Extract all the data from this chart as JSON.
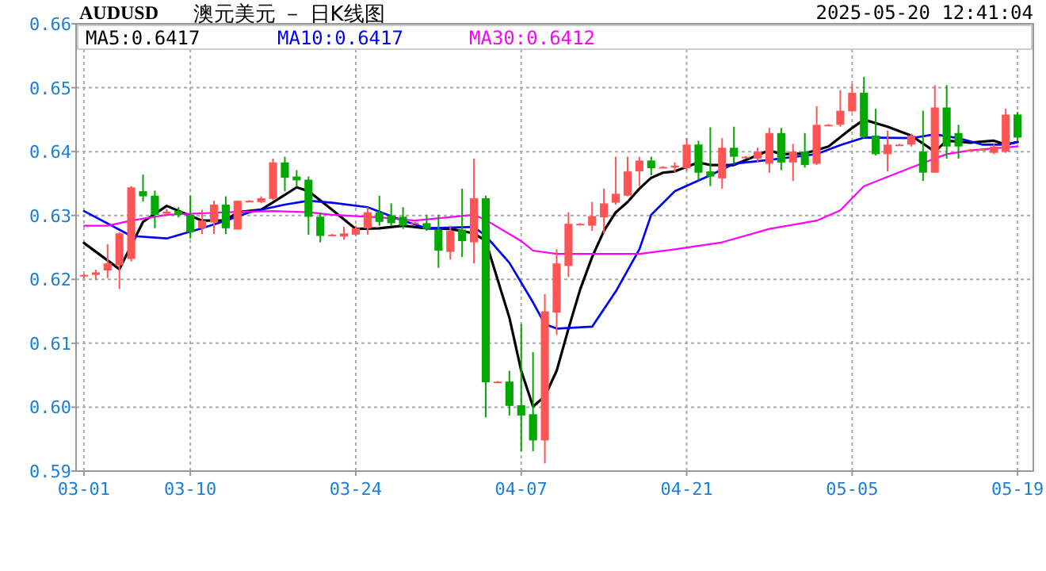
{
  "chart_data": {
    "type": "candlestick",
    "title": "澳元美元 － 日K线图",
    "subtitle": "AUDUSD",
    "annotations": [
      "2025-05-20 12:41:04"
    ],
    "x": [
      "2025-03-01",
      "2025-03-02",
      "2025-03-03",
      "2025-03-04",
      "2025-03-05",
      "2025-03-06",
      "2025-03-07",
      "2025-03-08",
      "2025-03-09",
      "2025-03-10",
      "2025-03-11",
      "2025-03-12",
      "2025-03-13",
      "2025-03-14",
      "2025-03-15",
      "2025-03-16",
      "2025-03-17",
      "2025-03-18",
      "2025-03-19",
      "2025-03-20",
      "2025-03-21",
      "2025-03-22",
      "2025-03-23",
      "2025-03-24",
      "2025-03-25",
      "2025-03-26",
      "2025-03-27",
      "2025-03-28",
      "2025-03-29",
      "2025-03-30",
      "2025-03-31",
      "2025-04-01",
      "2025-04-02",
      "2025-04-03",
      "2025-04-04",
      "2025-04-05",
      "2025-04-06",
      "2025-04-07",
      "2025-04-08",
      "2025-04-09",
      "2025-04-10",
      "2025-04-11",
      "2025-04-12",
      "2025-04-13",
      "2025-04-14",
      "2025-04-15",
      "2025-04-16",
      "2025-04-17",
      "2025-04-18",
      "2025-04-19",
      "2025-04-20",
      "2025-04-21",
      "2025-04-22",
      "2025-04-23",
      "2025-04-24",
      "2025-04-25",
      "2025-04-26",
      "2025-04-27",
      "2025-04-28",
      "2025-04-29",
      "2025-04-30",
      "2025-05-01",
      "2025-05-02",
      "2025-05-03",
      "2025-05-04",
      "2025-05-05",
      "2025-05-06",
      "2025-05-07",
      "2025-05-08",
      "2025-05-09",
      "2025-05-10",
      "2025-05-11",
      "2025-05-12",
      "2025-05-13",
      "2025-05-14",
      "2025-05-15",
      "2025-05-16",
      "2025-05-17",
      "2025-05-18",
      "2025-05-19"
    ],
    "ohlc": [
      [
        0.6205,
        0.6208,
        0.6203,
        0.6207
      ],
      [
        0.6207,
        0.6215,
        0.6199,
        0.6211
      ],
      [
        0.6214,
        0.6255,
        0.6202,
        0.6225
      ],
      [
        0.6222,
        0.6274,
        0.6185,
        0.6272
      ],
      [
        0.6232,
        0.6346,
        0.6228,
        0.6344
      ],
      [
        0.6338,
        0.6364,
        0.6322,
        0.633
      ],
      [
        0.6331,
        0.6339,
        0.628,
        0.6301
      ],
      [
        0.6303,
        0.631,
        0.63,
        0.6306
      ],
      [
        0.6307,
        0.6313,
        0.6297,
        0.6301
      ],
      [
        0.6301,
        0.6331,
        0.6264,
        0.6274
      ],
      [
        0.628,
        0.6309,
        0.6271,
        0.6292
      ],
      [
        0.6289,
        0.6323,
        0.6271,
        0.6317
      ],
      [
        0.6317,
        0.633,
        0.6271,
        0.628
      ],
      [
        0.6278,
        0.6323,
        0.6278,
        0.6323
      ],
      [
        0.6322,
        0.6324,
        0.6321,
        0.6323
      ],
      [
        0.6321,
        0.633,
        0.6319,
        0.6327
      ],
      [
        0.6326,
        0.6389,
        0.6324,
        0.6383
      ],
      [
        0.6383,
        0.6392,
        0.6338,
        0.6359
      ],
      [
        0.6361,
        0.6371,
        0.6345,
        0.6355
      ],
      [
        0.6356,
        0.6361,
        0.627,
        0.6298
      ],
      [
        0.6298,
        0.6305,
        0.6258,
        0.6268
      ],
      [
        0.6269,
        0.6271,
        0.6268,
        0.627
      ],
      [
        0.6267,
        0.6282,
        0.6262,
        0.6272
      ],
      [
        0.627,
        0.6284,
        0.6268,
        0.628
      ],
      [
        0.628,
        0.6313,
        0.627,
        0.6305
      ],
      [
        0.6305,
        0.6331,
        0.6284,
        0.629
      ],
      [
        0.63,
        0.6319,
        0.6284,
        0.6288
      ],
      [
        0.6298,
        0.6313,
        0.6279,
        0.6284
      ],
      [
        0.6288,
        0.629,
        0.6287,
        0.6289
      ],
      [
        0.6288,
        0.6301,
        0.6276,
        0.6279
      ],
      [
        0.6278,
        0.6301,
        0.6218,
        0.6245
      ],
      [
        0.6243,
        0.6284,
        0.6231,
        0.6276
      ],
      [
        0.6278,
        0.6342,
        0.6235,
        0.626
      ],
      [
        0.6258,
        0.6389,
        0.6225,
        0.6327
      ],
      [
        0.6327,
        0.6331,
        0.5984,
        0.6039
      ],
      [
        0.6039,
        0.6041,
        0.6038,
        0.604
      ],
      [
        0.604,
        0.6057,
        0.5987,
        0.6002
      ],
      [
        0.6003,
        0.613,
        0.5931,
        0.5987
      ],
      [
        0.5989,
        0.6086,
        0.5931,
        0.5948
      ],
      [
        0.5948,
        0.6177,
        0.5912,
        0.615
      ],
      [
        0.6148,
        0.6247,
        0.6113,
        0.6225
      ],
      [
        0.6221,
        0.6305,
        0.6204,
        0.6287
      ],
      [
        0.6286,
        0.6288,
        0.6285,
        0.6287
      ],
      [
        0.6284,
        0.6321,
        0.6276,
        0.6299
      ],
      [
        0.6297,
        0.6342,
        0.6272,
        0.6319
      ],
      [
        0.632,
        0.6392,
        0.6317,
        0.6334
      ],
      [
        0.6331,
        0.6392,
        0.633,
        0.6369
      ],
      [
        0.6369,
        0.6392,
        0.6346,
        0.6386
      ],
      [
        0.6386,
        0.6392,
        0.6363,
        0.6374
      ],
      [
        0.6375,
        0.6377,
        0.6374,
        0.6376
      ],
      [
        0.6375,
        0.6383,
        0.6367,
        0.6378
      ],
      [
        0.6374,
        0.6421,
        0.637,
        0.6411
      ],
      [
        0.6411,
        0.6417,
        0.6355,
        0.6367
      ],
      [
        0.6369,
        0.6438,
        0.6346,
        0.6361
      ],
      [
        0.6358,
        0.6421,
        0.6342,
        0.6406
      ],
      [
        0.6406,
        0.6439,
        0.638,
        0.6392
      ],
      [
        0.6391,
        0.6393,
        0.639,
        0.6392
      ],
      [
        0.6389,
        0.6406,
        0.6383,
        0.64
      ],
      [
        0.6381,
        0.6437,
        0.6367,
        0.6429
      ],
      [
        0.6429,
        0.6437,
        0.6371,
        0.6383
      ],
      [
        0.6383,
        0.6412,
        0.6354,
        0.64
      ],
      [
        0.64,
        0.6429,
        0.6375,
        0.6379
      ],
      [
        0.6381,
        0.6471,
        0.6379,
        0.6442
      ],
      [
        0.6441,
        0.6443,
        0.644,
        0.6442
      ],
      [
        0.6442,
        0.6496,
        0.6439,
        0.6464
      ],
      [
        0.6463,
        0.6506,
        0.6462,
        0.6492
      ],
      [
        0.6492,
        0.6517,
        0.6421,
        0.6423
      ],
      [
        0.6425,
        0.6467,
        0.6394,
        0.6396
      ],
      [
        0.6396,
        0.6433,
        0.6369,
        0.6411
      ],
      [
        0.641,
        0.6412,
        0.6409,
        0.6411
      ],
      [
        0.6411,
        0.6428,
        0.6408,
        0.6425
      ],
      [
        0.64,
        0.6464,
        0.6354,
        0.6367
      ],
      [
        0.6367,
        0.6504,
        0.6367,
        0.6469
      ],
      [
        0.6469,
        0.6504,
        0.6389,
        0.6408
      ],
      [
        0.6429,
        0.6442,
        0.6389,
        0.6408
      ],
      [
        0.6402,
        0.6404,
        0.6401,
        0.6403
      ],
      [
        0.6403,
        0.6405,
        0.6402,
        0.6404
      ],
      [
        0.6398,
        0.6412,
        0.6396,
        0.6408
      ],
      [
        0.64,
        0.6467,
        0.6398,
        0.6458
      ],
      [
        0.6458,
        0.6462,
        0.6418,
        0.6422
      ]
    ],
    "colors": [
      "#ff5555",
      "#ff5555",
      "#ff5555",
      "#ff5555",
      "#ff5555",
      "#00a800",
      "#00a800",
      "#ff5555",
      "#00a800",
      "#00a800",
      "#ff5555",
      "#ff5555",
      "#00a800",
      "#ff5555",
      "#ff5555",
      "#ff5555",
      "#ff5555",
      "#00a800",
      "#00a800",
      "#00a800",
      "#00a800",
      "#ff5555",
      "#ff5555",
      "#ff5555",
      "#ff5555",
      "#00a800",
      "#00a800",
      "#00a800",
      "#ff5555",
      "#00a800",
      "#00a800",
      "#ff5555",
      "#00a800",
      "#ff5555",
      "#00a800",
      "#ff5555",
      "#00a800",
      "#00a800",
      "#00a800",
      "#ff5555",
      "#ff5555",
      "#ff5555",
      "#ff5555",
      "#ff5555",
      "#ff5555",
      "#ff5555",
      "#ff5555",
      "#ff5555",
      "#00a800",
      "#ff5555",
      "#ff5555",
      "#ff5555",
      "#00a800",
      "#00a800",
      "#ff5555",
      "#00a800",
      "#ff5555",
      "#ff5555",
      "#ff5555",
      "#00a800",
      "#ff5555",
      "#00a800",
      "#ff5555",
      "#ff5555",
      "#ff5555",
      "#ff5555",
      "#00a800",
      "#00a800",
      "#ff5555",
      "#ff5555",
      "#ff5555",
      "#00a800",
      "#ff5555",
      "#00a800",
      "#00a800",
      "#ff5555",
      "#ff5555",
      "#ff5555",
      "#ff5555",
      "#00a800"
    ],
    "series": [
      {
        "name": "MA5:0.6417",
        "color": "#000000",
        "type": "line",
        "x": [
          "2025-03-01",
          "2025-03-04",
          "2025-03-06",
          "2025-03-08",
          "2025-03-11",
          "2025-03-13",
          "2025-03-14",
          "2025-03-16",
          "2025-03-19",
          "2025-03-20",
          "2025-03-22",
          "2025-03-24",
          "2025-03-26",
          "2025-03-28",
          "2025-03-30",
          "2025-04-01",
          "2025-04-03",
          "2025-04-04",
          "2025-04-06",
          "2025-04-07",
          "2025-04-08",
          "2025-04-09",
          "2025-04-10",
          "2025-04-11",
          "2025-04-12",
          "2025-04-13",
          "2025-04-14",
          "2025-04-15",
          "2025-04-16",
          "2025-04-17",
          "2025-04-18",
          "2025-04-19",
          "2025-04-20",
          "2025-04-22",
          "2025-04-23",
          "2025-04-25",
          "2025-04-28",
          "2025-04-29",
          "2025-05-01",
          "2025-05-03",
          "2025-05-05",
          "2025-05-06",
          "2025-05-08",
          "2025-05-10",
          "2025-05-12",
          "2025-05-13",
          "2025-05-15",
          "2025-05-17",
          "2025-05-18",
          "2025-05-19"
        ],
        "values": [
          0.6257,
          0.6216,
          0.629,
          0.6315,
          0.6292,
          0.6292,
          0.6305,
          0.6309,
          0.6344,
          0.6338,
          0.6309,
          0.6279,
          0.628,
          0.6284,
          0.628,
          0.6279,
          0.6272,
          0.626,
          0.614,
          0.6057,
          0.6001,
          0.6017,
          0.6057,
          0.6123,
          0.6185,
          0.6235,
          0.6276,
          0.6305,
          0.6321,
          0.6342,
          0.6359,
          0.6367,
          0.6369,
          0.6383,
          0.6379,
          0.6379,
          0.6402,
          0.6396,
          0.6397,
          0.6408,
          0.6437,
          0.645,
          0.6439,
          0.6425,
          0.64,
          0.6417,
          0.6414,
          0.6417,
          0.6411,
          0.6415
        ]
      },
      {
        "name": "MA10:0.6417",
        "color": "#0000ff",
        "type": "line",
        "x": [
          "2025-03-01",
          "2025-03-05",
          "2025-03-08",
          "2025-03-11",
          "2025-03-13",
          "2025-03-15",
          "2025-03-18",
          "2025-03-20",
          "2025-03-22",
          "2025-03-25",
          "2025-03-28",
          "2025-03-30",
          "2025-04-03",
          "2025-04-04",
          "2025-04-06",
          "2025-04-08",
          "2025-04-09",
          "2025-04-10",
          "2025-04-13",
          "2025-04-15",
          "2025-04-17",
          "2025-04-18",
          "2025-04-20",
          "2025-04-23",
          "2025-04-25",
          "2025-04-28",
          "2025-05-02",
          "2025-05-04",
          "2025-05-06",
          "2025-05-10",
          "2025-05-12",
          "2025-05-14",
          "2025-05-16",
          "2025-05-18",
          "2025-05-19"
        ],
        "values": [
          0.6307,
          0.6268,
          0.6264,
          0.628,
          0.6292,
          0.6305,
          0.6317,
          0.6323,
          0.632,
          0.6313,
          0.6292,
          0.628,
          0.6282,
          0.6268,
          0.6226,
          0.6164,
          0.613,
          0.6123,
          0.6126,
          0.6181,
          0.6247,
          0.6301,
          0.6338,
          0.6363,
          0.6381,
          0.6387,
          0.6396,
          0.641,
          0.6422,
          0.6421,
          0.6427,
          0.6421,
          0.6411,
          0.6411,
          0.6415
        ]
      },
      {
        "name": "MA30:0.6412",
        "color": "#ff00ff",
        "type": "line",
        "x": [
          "2025-03-01",
          "2025-03-03",
          "2025-03-05",
          "2025-03-08",
          "2025-03-13",
          "2025-03-17",
          "2025-03-20",
          "2025-03-22",
          "2025-03-26",
          "2025-03-29",
          "2025-04-03",
          "2025-04-04",
          "2025-04-07",
          "2025-04-08",
          "2025-04-10",
          "2025-04-17",
          "2025-04-20",
          "2025-04-24",
          "2025-04-28",
          "2025-05-02",
          "2025-05-04",
          "2025-05-06",
          "2025-05-10",
          "2025-05-13",
          "2025-05-15",
          "2025-05-19"
        ],
        "values": [
          0.6284,
          0.6284,
          0.6292,
          0.6301,
          0.6305,
          0.6307,
          0.6305,
          0.6301,
          0.6297,
          0.6292,
          0.6301,
          0.6293,
          0.626,
          0.6245,
          0.624,
          0.624,
          0.6247,
          0.6258,
          0.6279,
          0.6292,
          0.6308,
          0.6346,
          0.6375,
          0.6396,
          0.6402,
          0.6408
        ]
      }
    ],
    "xlim": [
      "2025-02-28T08:00",
      "2025-05-20T08:00"
    ],
    "xticks": [
      {
        "value": "2025-03-01",
        "label": "03-01"
      },
      {
        "value": "2025-03-10",
        "label": "03-10"
      },
      {
        "value": "2025-03-24",
        "label": "03-24"
      },
      {
        "value": "2025-04-07",
        "label": "04-07"
      },
      {
        "value": "2025-04-21",
        "label": "04-21"
      },
      {
        "value": "2025-05-05",
        "label": "05-05"
      },
      {
        "value": "2025-05-19",
        "label": "05-19"
      }
    ],
    "ylim": [
      0.59,
      0.66
    ],
    "yticks": [
      0.59,
      {
        "value": 0.6,
        "label": "0.60"
      },
      0.61,
      0.62,
      0.63,
      0.64,
      0.65,
      0.66
    ],
    "grid": true,
    "legend": "top left"
  }
}
